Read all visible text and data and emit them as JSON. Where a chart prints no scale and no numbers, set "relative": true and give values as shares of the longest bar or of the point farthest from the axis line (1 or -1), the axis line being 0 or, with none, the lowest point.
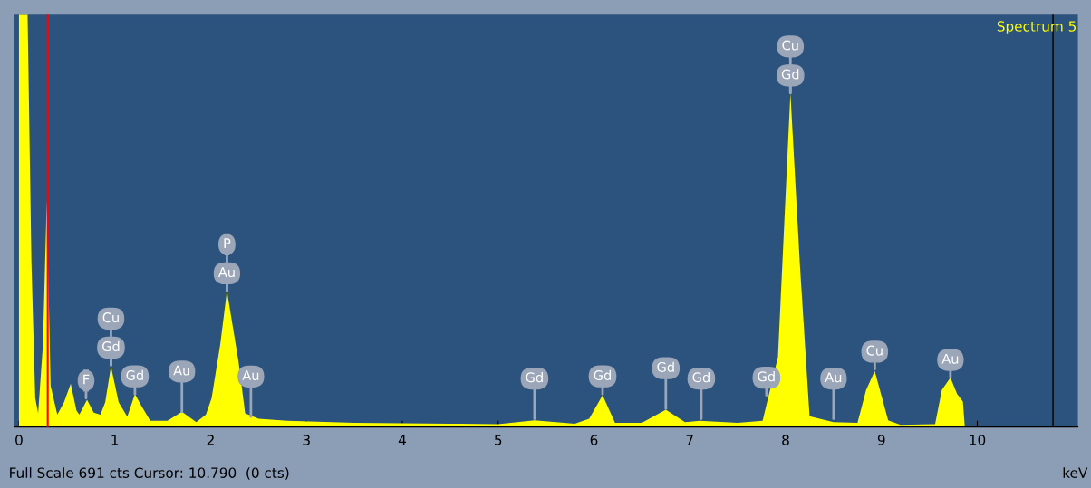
{
  "chart_data": {
    "type": "area",
    "relative": true,
    "xlabel": "keV",
    "title": "Spectrum 5",
    "xlim": [
      -0.05,
      11.05
    ],
    "xticks": [
      0,
      1,
      2,
      3,
      4,
      5,
      6,
      7,
      8,
      9,
      10
    ],
    "grid": false,
    "series": [
      {
        "color": "#ffff00",
        "x": [
          0.0,
          0.09,
          0.13,
          0.17,
          0.2,
          0.25,
          0.29,
          0.33,
          0.4,
          0.47,
          0.54,
          0.6,
          0.63,
          0.71,
          0.78,
          0.85,
          0.9,
          0.96,
          1.04,
          1.13,
          1.21,
          1.28,
          1.37,
          1.55,
          1.7,
          1.85,
          1.95,
          2.01,
          2.1,
          2.17,
          2.29,
          2.36,
          2.5,
          2.8,
          3.5,
          4.5,
          5.0,
          5.38,
          5.8,
          5.95,
          6.09,
          6.22,
          6.5,
          6.75,
          6.95,
          7.1,
          7.5,
          7.76,
          7.92,
          8.05,
          8.15,
          8.25,
          8.5,
          8.75,
          8.84,
          8.93,
          9.07,
          9.2,
          9.56,
          9.63,
          9.72,
          9.79,
          9.85,
          9.87
        ],
        "values": [
          1.0,
          1.0,
          0.4,
          0.07,
          0.033,
          0.2,
          0.55,
          0.1,
          0.03,
          0.06,
          0.105,
          0.04,
          0.03,
          0.066,
          0.035,
          0.03,
          0.06,
          0.147,
          0.06,
          0.025,
          0.08,
          0.05,
          0.015,
          0.015,
          0.037,
          0.012,
          0.03,
          0.07,
          0.2,
          0.33,
          0.16,
          0.033,
          0.02,
          0.015,
          0.01,
          0.008,
          0.007,
          0.016,
          0.008,
          0.02,
          0.077,
          0.01,
          0.01,
          0.042,
          0.012,
          0.015,
          0.01,
          0.015,
          0.17,
          0.81,
          0.39,
          0.026,
          0.012,
          0.01,
          0.09,
          0.136,
          0.016,
          0.005,
          0.007,
          0.09,
          0.12,
          0.08,
          0.062,
          0.0
        ]
      }
    ],
    "ref_lines": [
      {
        "axis": "x",
        "value": 0.3,
        "color": "#ff0000"
      },
      {
        "axis": "x",
        "value": 10.79,
        "color": "#000000"
      }
    ],
    "annotations": [
      {
        "text": "F",
        "x": 0.7,
        "y": 0.07
      },
      {
        "text": "Gd",
        "x": 0.96,
        "y": 0.15
      },
      {
        "text": "Cu",
        "x": 0.96,
        "y": 0.15
      },
      {
        "text": "Gd",
        "x": 1.21,
        "y": 0.08
      },
      {
        "text": "Au",
        "x": 1.7,
        "y": 0.037
      },
      {
        "text": "Au",
        "x": 2.17,
        "y": 0.33
      },
      {
        "text": "P",
        "x": 2.17,
        "y": 0.33
      },
      {
        "text": "Au",
        "x": 2.42,
        "y": 0.025
      },
      {
        "text": "Gd",
        "x": 5.38,
        "y": 0.02
      },
      {
        "text": "Gd",
        "x": 6.09,
        "y": 0.08
      },
      {
        "text": "Gd",
        "x": 6.75,
        "y": 0.045
      },
      {
        "text": "Gd",
        "x": 7.12,
        "y": 0.02
      },
      {
        "text": "Gd",
        "x": 7.8,
        "y": 0.077
      },
      {
        "text": "Gd",
        "x": 8.05,
        "y": 0.81
      },
      {
        "text": "Cu",
        "x": 8.05,
        "y": 0.81
      },
      {
        "text": "Au",
        "x": 8.5,
        "y": 0.02
      },
      {
        "text": "Cu",
        "x": 8.93,
        "y": 0.14
      },
      {
        "text": "Au",
        "x": 9.72,
        "y": 0.12
      },
      "Full Scale 691 cts Cursor: 10.790  (0 cts)"
    ]
  }
}
